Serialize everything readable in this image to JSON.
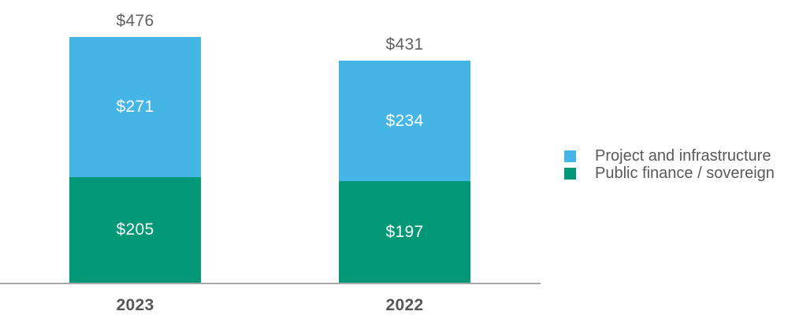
{
  "chart_data": {
    "type": "bar",
    "stacked": true,
    "title": "",
    "xlabel": "",
    "ylabel": "",
    "value_prefix": "$",
    "categories": [
      "2023",
      "2022"
    ],
    "series": [
      {
        "name": "Project and infrastructure",
        "color": "#45b5e5",
        "values": [
          271,
          234
        ],
        "labels": [
          "$271",
          "$234"
        ]
      },
      {
        "name": "Public finance / sovereign",
        "color": "#009877",
        "values": [
          205,
          197
        ],
        "labels": [
          "$205",
          "$197"
        ]
      }
    ],
    "totals": [
      476,
      431
    ],
    "total_labels": [
      "$476",
      "$431"
    ],
    "ylim": [
      0,
      500
    ],
    "grid": false,
    "legend_position": "right",
    "axis_line_color": "#a6a8ab",
    "label_text_color": "#58595b",
    "bar_label_text_color": "#ffffff"
  }
}
